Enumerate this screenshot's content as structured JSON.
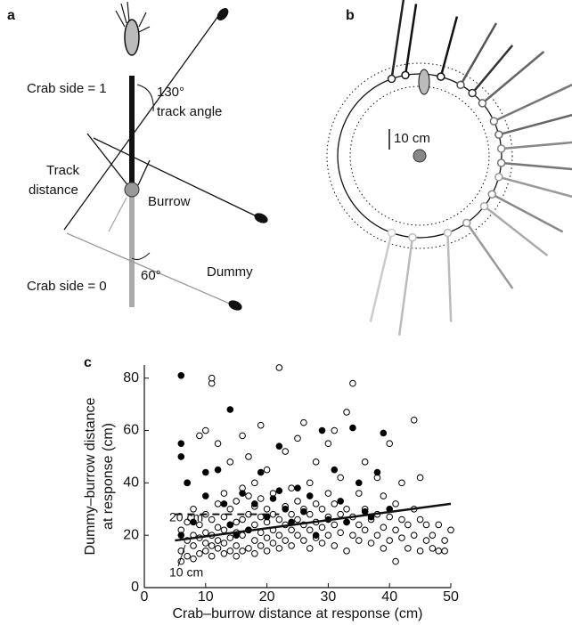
{
  "panel_a": {
    "label": "a",
    "crab_side_1": "Crab side = 1",
    "angle_130": "130°",
    "track_angle": "track angle",
    "track": "Track",
    "distance": "distance",
    "burrow": "Burrow",
    "dummy": "Dummy",
    "crab_side_0": "Crab side = 0",
    "angle_60": "60°"
  },
  "panel_b": {
    "label": "b",
    "scale": "10 cm"
  },
  "chart_data": {
    "type": "scatter",
    "label": "c",
    "xlabel": "Crab–burrow distance at response (cm)",
    "ylabel": [
      "Dummy–burrow distance",
      "at response (cm)"
    ],
    "xlim": [
      0,
      50
    ],
    "ylim": [
      0,
      85
    ],
    "xticks": [
      0,
      10,
      20,
      30,
      40,
      50
    ],
    "yticks": [
      0,
      20,
      40,
      60,
      80
    ],
    "series": [
      {
        "marker": "open",
        "color": "#000000",
        "x": [
          6,
          6,
          6,
          7,
          7,
          7,
          7,
          8,
          8,
          8,
          8,
          9,
          9,
          9,
          9,
          10,
          10,
          10,
          10,
          10,
          11,
          11,
          11,
          11,
          11,
          11,
          12,
          12,
          12,
          12,
          12,
          13,
          13,
          13,
          13,
          13,
          14,
          14,
          14,
          14,
          14,
          15,
          15,
          15,
          15,
          15,
          16,
          16,
          16,
          16,
          16,
          17,
          17,
          17,
          17,
          17,
          18,
          18,
          18,
          18,
          18,
          19,
          19,
          19,
          19,
          19,
          20,
          20,
          20,
          20,
          20,
          21,
          21,
          21,
          21,
          22,
          22,
          22,
          22,
          23,
          23,
          23,
          23,
          24,
          24,
          24,
          24,
          25,
          25,
          25,
          25,
          26,
          26,
          26,
          26,
          27,
          27,
          27,
          27,
          28,
          28,
          28,
          28,
          29,
          29,
          29,
          30,
          30,
          30,
          30,
          31,
          31,
          31,
          31,
          32,
          32,
          32,
          33,
          33,
          33,
          33,
          34,
          34,
          34,
          35,
          35,
          35,
          36,
          36,
          36,
          37,
          37,
          38,
          38,
          38,
          39,
          39,
          39,
          40,
          40,
          40,
          41,
          41,
          41,
          42,
          42,
          42,
          43,
          43,
          44,
          44,
          44,
          45,
          45,
          45,
          46,
          46,
          47,
          47,
          48,
          48,
          49,
          50,
          49
        ],
        "values": [
          10,
          14,
          22,
          12,
          18,
          25,
          40,
          11,
          16,
          20,
          30,
          13,
          19,
          24,
          58,
          14,
          17,
          21,
          28,
          60,
          12,
          16,
          20,
          26,
          78,
          80,
          15,
          18,
          23,
          32,
          55,
          13,
          17,
          22,
          27,
          36,
          14,
          19,
          24,
          30,
          48,
          12,
          16,
          21,
          25,
          33,
          14,
          20,
          26,
          38,
          58,
          15,
          22,
          28,
          35,
          50,
          13,
          18,
          24,
          31,
          40,
          16,
          21,
          27,
          34,
          62,
          14,
          19,
          25,
          30,
          45,
          17,
          22,
          28,
          36,
          15,
          20,
          26,
          84,
          18,
          24,
          31,
          52,
          16,
          22,
          28,
          38,
          20,
          26,
          33,
          57,
          18,
          24,
          30,
          63,
          15,
          22,
          28,
          40,
          19,
          25,
          32,
          48,
          17,
          23,
          30,
          20,
          27,
          36,
          55,
          16,
          24,
          32,
          60,
          21,
          28,
          42,
          14,
          25,
          30,
          67,
          20,
          27,
          78,
          18,
          24,
          36,
          22,
          30,
          48,
          17,
          26,
          20,
          28,
          42,
          15,
          23,
          35,
          18,
          27,
          55,
          10,
          22,
          32,
          19,
          26,
          40,
          15,
          24,
          20,
          30,
          64,
          14,
          26,
          42,
          18,
          24,
          20,
          15,
          24,
          14,
          18,
          22,
          14
        ]
      },
      {
        "marker": "filled",
        "color": "#000000",
        "x": [
          6,
          6,
          6,
          6,
          7,
          8,
          10,
          10,
          12,
          13,
          14,
          14,
          15,
          16,
          17,
          18,
          19,
          20,
          21,
          22,
          22,
          23,
          24,
          25,
          26,
          27,
          28,
          29,
          30,
          31,
          32,
          33,
          34,
          35,
          36,
          38,
          39,
          40,
          37
        ],
        "values": [
          81,
          55,
          50,
          20,
          40,
          25,
          44,
          35,
          45,
          32,
          68,
          24,
          20,
          36,
          22,
          32,
          44,
          27,
          34,
          37,
          54,
          30,
          25,
          38,
          29,
          35,
          20,
          60,
          26,
          45,
          33,
          25,
          61,
          40,
          29,
          44,
          59,
          30,
          27
        ]
      }
    ],
    "fit": {
      "x": [
        5,
        50
      ],
      "values": [
        18,
        32
      ]
    },
    "reference": {
      "x": [
        5,
        22
      ],
      "values": [
        28,
        28
      ]
    },
    "annotations": [
      "20 cm",
      "10 cm"
    ]
  }
}
